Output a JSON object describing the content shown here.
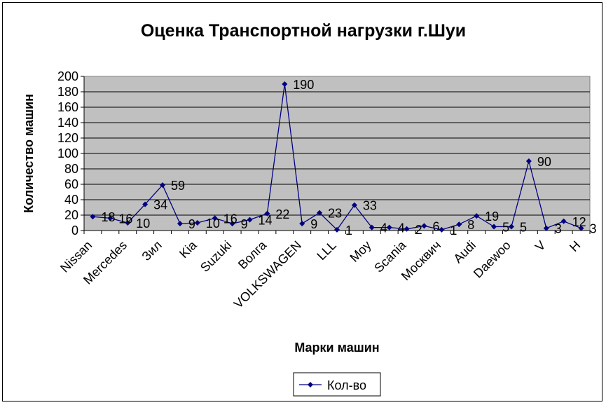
{
  "chart_data": {
    "type": "line",
    "title": "Оценка Транспортной нагрузки г.Шуи",
    "xlabel": "Марки машин",
    "ylabel": "Количество машин",
    "ylim": [
      0,
      200
    ],
    "yticks": [
      0,
      20,
      40,
      60,
      80,
      100,
      120,
      140,
      160,
      180,
      200
    ],
    "grid": true,
    "legend_position": "bottom",
    "plot_background": "#c0c0c0",
    "series_color": "#000080",
    "category_labels": [
      "Nissan",
      "Mercedes",
      "Зил",
      "Kia",
      "Suzuki",
      "Волга",
      "VOLKSWAGEN",
      "LLL",
      "Moy",
      "Scania",
      "Москвич",
      "Audi",
      "Daewoo",
      "V",
      "H"
    ],
    "series": [
      {
        "name": "Кол-во",
        "values": [
          18,
          16,
          10,
          34,
          59,
          9,
          10,
          16,
          9,
          14,
          22,
          190,
          9,
          23,
          1,
          33,
          4,
          4,
          2,
          6,
          1,
          8,
          19,
          5,
          5,
          90,
          3,
          12,
          3
        ]
      }
    ]
  }
}
